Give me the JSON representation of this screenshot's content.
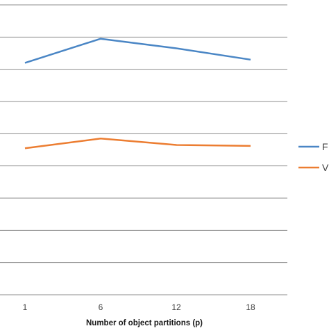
{
  "chart_data": {
    "type": "line",
    "title": "",
    "xlabel": "Number of object partitions (p)",
    "ylabel": "",
    "categories": [
      "1",
      "6",
      "12",
      "18"
    ],
    "ylim": [
      0,
      9
    ],
    "grid": true,
    "legend_position": "right",
    "series": [
      {
        "name": "F",
        "color": "#4a86c5",
        "values": [
          7.2,
          7.95,
          7.65,
          7.3
        ]
      },
      {
        "name": "V",
        "color": "#ec7d31",
        "values": [
          4.55,
          4.85,
          4.65,
          4.62
        ]
      }
    ]
  }
}
